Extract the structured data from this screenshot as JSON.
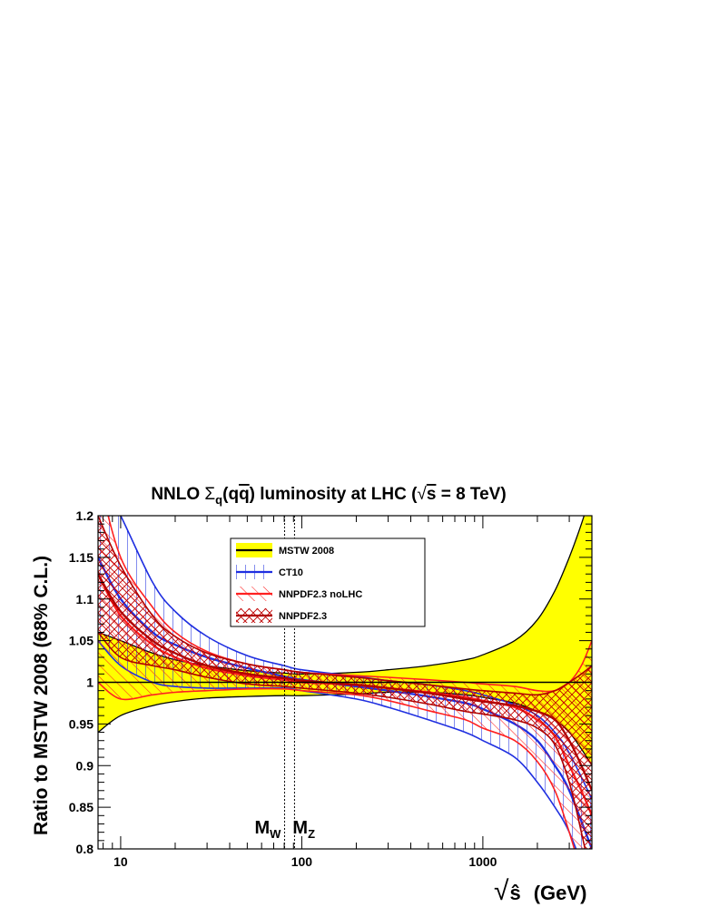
{
  "chart_data": {
    "type": "line",
    "title_parts": {
      "pre": "NNLO ",
      "sigma": "Σ",
      "sub": "q",
      "open": "(q",
      "qbar": "q",
      "close": ") luminosity at LHC (",
      "root": "√",
      "s": "s",
      "post": " = 8 TeV)"
    },
    "ylabel": "Ratio to MSTW 2008 (68% C.L.)",
    "xlabel_parts": {
      "root": "√",
      "s": "ŝ",
      "unit": "(GeV)"
    },
    "xscale": "log",
    "xlim": [
      7.5,
      4000
    ],
    "ylim": [
      0.8,
      1.2
    ],
    "x_ticks": [
      {
        "value": 10,
        "label": "10"
      },
      {
        "value": 100,
        "label": "100"
      },
      {
        "value": 1000,
        "label": "1000"
      }
    ],
    "y_ticks": [
      {
        "value": 0.8,
        "label": "0.8"
      },
      {
        "value": 0.85,
        "label": "0.85"
      },
      {
        "value": 0.9,
        "label": "0.9"
      },
      {
        "value": 0.95,
        "label": "0.95"
      },
      {
        "value": 1.0,
        "label": "1"
      },
      {
        "value": 1.05,
        "label": "1.05"
      },
      {
        "value": 1.1,
        "label": "1.1"
      },
      {
        "value": 1.15,
        "label": "1.15"
      },
      {
        "value": 1.2,
        "label": "1.2"
      }
    ],
    "reference_line": 1.0,
    "markers": [
      {
        "name": "M_W",
        "label": "M",
        "sub": "W",
        "x": 80.4
      },
      {
        "name": "M_Z",
        "label": "M",
        "sub": "Z",
        "x": 91.2
      }
    ],
    "legend_position": "top-left",
    "series": [
      {
        "name": "MSTW 2008",
        "style": "yellow-fill",
        "color": "#ffff00",
        "line_color": "#000000",
        "x": [
          7.5,
          10,
          15,
          20,
          30,
          50,
          80,
          100,
          200,
          300,
          500,
          800,
          1000,
          1500,
          2000,
          2500,
          3000,
          3500,
          4000
        ],
        "central": [
          1.0,
          1.0,
          1.0,
          1.0,
          1.0,
          1.0,
          1.0,
          1.0,
          1.0,
          1.0,
          1.0,
          1.0,
          1.0,
          1.0,
          1.0,
          1.0,
          1.0,
          1.0,
          1.0
        ],
        "upper": [
          1.06,
          1.05,
          1.035,
          1.027,
          1.02,
          1.014,
          1.011,
          1.01,
          1.012,
          1.015,
          1.02,
          1.027,
          1.033,
          1.05,
          1.075,
          1.11,
          1.15,
          1.19,
          1.23
        ],
        "lower": [
          0.94,
          0.96,
          0.972,
          0.977,
          0.981,
          0.983,
          0.984,
          0.984,
          0.986,
          0.988,
          0.988,
          0.985,
          0.982,
          0.975,
          0.965,
          0.955,
          0.94,
          0.92,
          0.9
        ]
      },
      {
        "name": "CT10",
        "style": "vertical-hatch",
        "color": "#1f2fe0",
        "x": [
          7.5,
          10,
          15,
          20,
          30,
          50,
          80,
          100,
          200,
          300,
          500,
          800,
          1000,
          1500,
          2000,
          2500,
          3000,
          4000
        ],
        "central": [
          1.15,
          1.1,
          1.06,
          1.045,
          1.03,
          1.017,
          1.007,
          1.003,
          0.995,
          0.99,
          0.983,
          0.975,
          0.968,
          0.95,
          0.93,
          0.9,
          0.87,
          0.8
        ],
        "upper": [
          1.25,
          1.2,
          1.12,
          1.085,
          1.055,
          1.032,
          1.02,
          1.015,
          1.007,
          1.002,
          0.997,
          0.99,
          0.985,
          0.973,
          0.96,
          0.94,
          0.915,
          0.86
        ],
        "lower": [
          1.05,
          1.02,
          1.0,
          0.995,
          0.993,
          0.993,
          0.993,
          0.99,
          0.98,
          0.97,
          0.955,
          0.94,
          0.93,
          0.91,
          0.88,
          0.85,
          0.82,
          0.75
        ]
      },
      {
        "name": "NNPDF2.3 noLHC",
        "style": "diagonal-hatch",
        "color": "#ff2020",
        "x": [
          7.5,
          10,
          15,
          20,
          30,
          50,
          80,
          100,
          200,
          300,
          500,
          800,
          1000,
          1500,
          2000,
          2500,
          3000,
          3500,
          4000
        ],
        "central": [
          1.13,
          1.08,
          1.045,
          1.03,
          1.017,
          1.008,
          1.003,
          1.0,
          0.997,
          0.993,
          0.988,
          0.982,
          0.978,
          0.97,
          0.955,
          0.935,
          0.9,
          0.87,
          0.84
        ],
        "upper": [
          1.25,
          1.15,
          1.09,
          1.06,
          1.037,
          1.022,
          1.015,
          1.012,
          1.008,
          1.006,
          1.003,
          1.0,
          0.998,
          0.995,
          0.99,
          0.99,
          1.0,
          1.02,
          1.05
        ],
        "lower": [
          1.0,
          0.98,
          0.985,
          0.988,
          0.99,
          0.992,
          0.992,
          0.99,
          0.985,
          0.978,
          0.966,
          0.955,
          0.945,
          0.93,
          0.905,
          0.87,
          0.82,
          0.77,
          0.72
        ]
      },
      {
        "name": "NNPDF2.3",
        "style": "crosshatch",
        "color": "#b00000",
        "x": [
          7.5,
          10,
          15,
          20,
          30,
          50,
          80,
          100,
          200,
          300,
          500,
          800,
          1000,
          1500,
          2000,
          2500,
          3000,
          3500,
          4000
        ],
        "central": [
          1.13,
          1.085,
          1.05,
          1.035,
          1.02,
          1.01,
          1.005,
          1.002,
          0.997,
          0.993,
          0.987,
          0.98,
          0.977,
          0.972,
          0.965,
          0.955,
          0.93,
          0.9,
          0.87
        ],
        "upper": [
          1.2,
          1.14,
          1.08,
          1.055,
          1.035,
          1.022,
          1.015,
          1.012,
          1.006,
          1.002,
          0.997,
          0.992,
          0.99,
          0.987,
          0.985,
          0.99,
          1.0,
          1.01,
          1.02
        ],
        "lower": [
          1.06,
          1.03,
          1.02,
          1.015,
          1.006,
          0.998,
          0.995,
          0.993,
          0.987,
          0.982,
          0.974,
          0.965,
          0.962,
          0.955,
          0.945,
          0.925,
          0.88,
          0.82,
          0.76
        ]
      }
    ]
  }
}
